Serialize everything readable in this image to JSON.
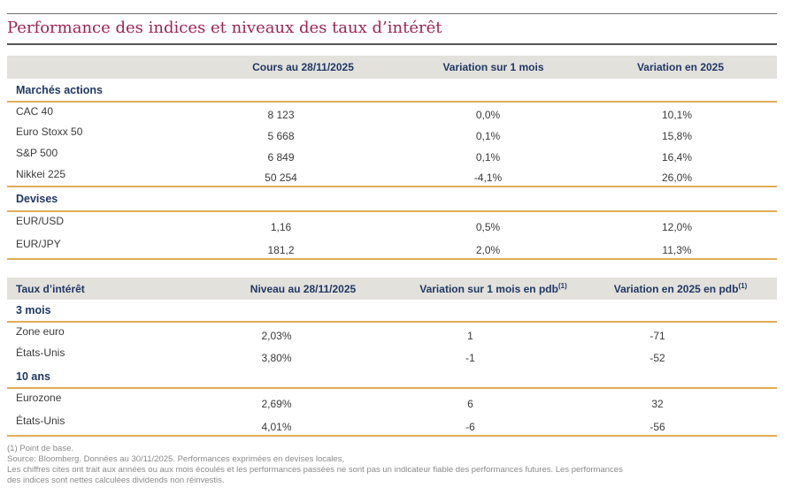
{
  "page_title": "Performance des indices et niveaux des taux d’intérêt",
  "colors": {
    "title": "#9D2550",
    "navy_heading": "#1F3864",
    "gold_rule": "#E0AD55",
    "header_background": "#E3E1DC",
    "body_text": "#3A3A3B",
    "footnote_text": "#8A8A8A"
  },
  "indices_table": {
    "headers": [
      "",
      "Cours au 28/11/2025",
      "Variation sur 1 mois",
      "Variation en 2025"
    ],
    "sections": [
      {
        "label": "Marchés actions",
        "rows": [
          {
            "label": "CAC 40",
            "values": [
              "8 123",
              "0,0%",
              "10,1%"
            ]
          },
          {
            "label": "Euro Stoxx 50",
            "values": [
              "5 668",
              "0,1%",
              "15,8%"
            ]
          },
          {
            "label": "S&P 500",
            "values": [
              "6 849",
              "0,1%",
              "16,4%"
            ]
          },
          {
            "label": "Nikkei 225",
            "values": [
              "50 254",
              "-4,1%",
              "26,0%"
            ]
          }
        ]
      },
      {
        "label": "Devises",
        "rows": [
          {
            "label": "EUR/USD",
            "values": [
              "1,16",
              "0,5%",
              "12,0%"
            ]
          },
          {
            "label": "EUR/JPY",
            "values": [
              "181,2",
              "2,0%",
              "11,3%"
            ]
          }
        ]
      }
    ]
  },
  "rates_table": {
    "headers": [
      {
        "text": "Taux d’intérêt",
        "sup": ""
      },
      {
        "text": "Niveau au 28/11/2025",
        "sup": ""
      },
      {
        "text": "Variation sur 1 mois en pdb",
        "sup": "(1)"
      },
      {
        "text": "Variation en 2025 en pdb",
        "sup": "(1)"
      }
    ],
    "sections": [
      {
        "label": "3 mois",
        "rows": [
          {
            "label": "Zone euro",
            "values": [
              "2,03%",
              "1",
              "-71"
            ]
          },
          {
            "label": "États-Unis",
            "values": [
              "3,80%",
              "-1",
              "-52"
            ]
          }
        ]
      },
      {
        "label": "10 ans",
        "rows": [
          {
            "label": "Eurozone",
            "values": [
              "2,69%",
              "6",
              "32"
            ]
          },
          {
            "label": "États-Unis",
            "values": [
              "4,01%",
              "-6",
              "-56"
            ]
          }
        ]
      }
    ]
  },
  "footnotes": [
    "(1) Point de base.",
    "Source: Bloomberg. Données au 30/11/2025. Performances exprimées en devises locales,",
    "Les chiffres cites ont trait aux années ou aux mois écoulés et les performances passées ne sont pas un indicateur fiable des performances futures. Les performances",
    "des indices sont nettes calculées dividends non réinvestis."
  ]
}
